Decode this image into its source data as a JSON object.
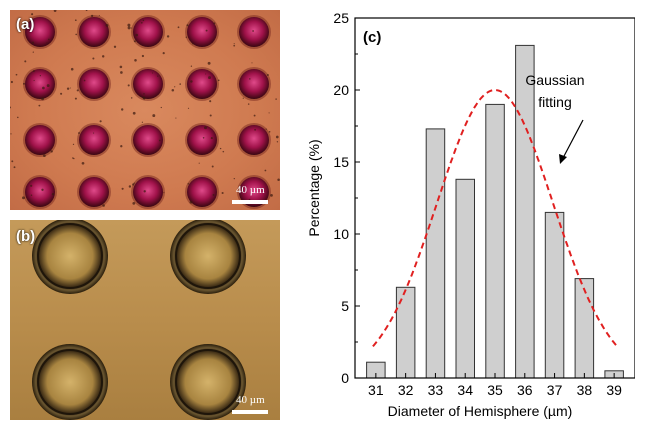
{
  "panels": {
    "a": {
      "label": "(a)",
      "scalebar": "40 µm"
    },
    "b": {
      "label": "(b)",
      "scalebar": "40 µm"
    },
    "c": {
      "label": "(c)"
    }
  },
  "annotation": {
    "line1": "Gaussian",
    "line2": "fitting"
  },
  "chart_data": {
    "type": "bar",
    "title": "",
    "xlabel": "Diameter of Hemisphere (µm)",
    "ylabel": "Percentage (%)",
    "categories": [
      "31",
      "32",
      "33",
      "34",
      "35",
      "36",
      "37",
      "38",
      "39"
    ],
    "values": [
      1.1,
      6.3,
      17.3,
      13.8,
      19.0,
      23.1,
      11.5,
      6.9,
      0.5
    ],
    "ylim": [
      0,
      25
    ],
    "yticks": [
      0,
      5,
      10,
      15,
      20,
      25
    ],
    "fit": {
      "type": "gaussian",
      "center": 35,
      "peak": 20,
      "sigma": 1.95,
      "color": "#e02020"
    },
    "bar_color": "#cfcfcf",
    "grid": false
  }
}
